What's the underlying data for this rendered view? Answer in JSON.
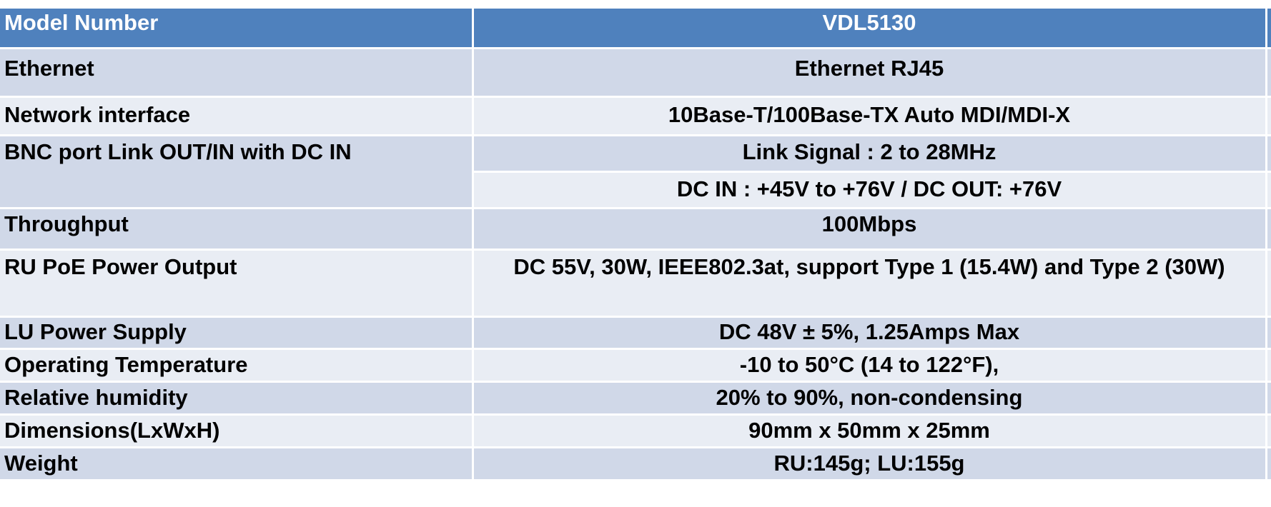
{
  "table": {
    "header": {
      "label": "Model Number",
      "value": "VDL5130"
    },
    "rows": [
      {
        "label": "Ethernet",
        "value": "Ethernet RJ45"
      },
      {
        "label": "Network interface",
        "value": "10Base-T/100Base-TX Auto MDI/MDI-X"
      },
      {
        "label": "BNC port Link OUT/IN with DC IN",
        "values": [
          "Link Signal : 2 to 28MHz",
          "DC IN : +45V to +76V / DC OUT: +76V"
        ]
      },
      {
        "label": "Throughput",
        "value": "100Mbps"
      },
      {
        "label": "RU PoE Power Output",
        "value": "DC 55V, 30W, IEEE802.3at, support Type 1 (15.4W) and Type 2 (30W)"
      },
      {
        "label": "LU Power Supply",
        "value": "DC 48V ± 5%, 1.25Amps Max"
      },
      {
        "label": "Operating Temperature",
        "value": "-10 to 50°C (14 to 122°F),"
      },
      {
        "label": "Relative humidity",
        "value": "20% to 90%, non-condensing"
      },
      {
        "label": "Dimensions(LxWxH)",
        "value": "90mm x 50mm x 25mm"
      },
      {
        "label": "Weight",
        "value": "RU:145g; LU:155g"
      }
    ]
  },
  "colors": {
    "header_bg": "#4f81bd",
    "header_text": "#ffffff",
    "row_dark": "#d0d8e8",
    "row_light": "#e9edf4"
  }
}
